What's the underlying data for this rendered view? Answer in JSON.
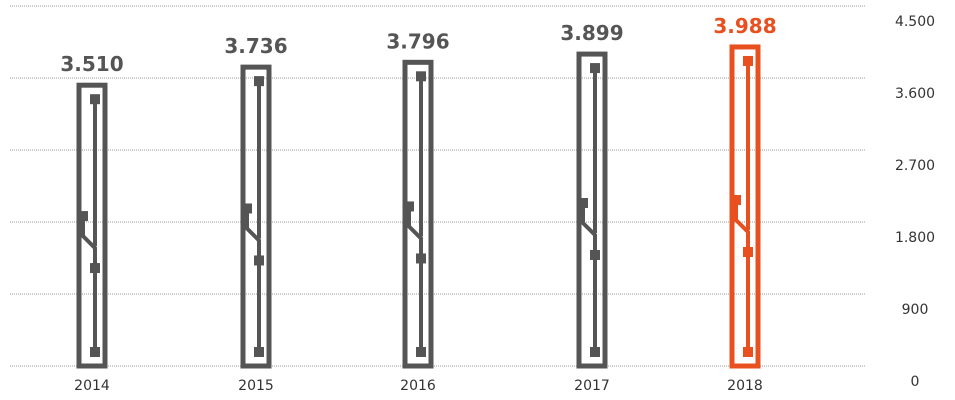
{
  "colors": {
    "bar": "#555555",
    "highlight": "#e8501f",
    "grid": "#9a9a9a",
    "text": "#333333"
  },
  "chart_data": {
    "type": "bar",
    "categories": [
      "2014",
      "2015",
      "2016",
      "2017",
      "2018"
    ],
    "values": [
      3510,
      3736,
      3796,
      3899,
      3988
    ],
    "value_labels": [
      "3.510",
      "3.736",
      "3.796",
      "3.899",
      "3.988"
    ],
    "highlight_category": "2018",
    "ylim": [
      0,
      4500
    ],
    "yticks": [
      0,
      900,
      1800,
      2700,
      3600,
      4500
    ],
    "ytick_labels": [
      "0",
      "900",
      "1.800",
      "2.700",
      "3.600",
      "4.500"
    ],
    "y_axis_side": "right",
    "grid": true,
    "title": "",
    "xlabel": "",
    "ylabel": ""
  }
}
